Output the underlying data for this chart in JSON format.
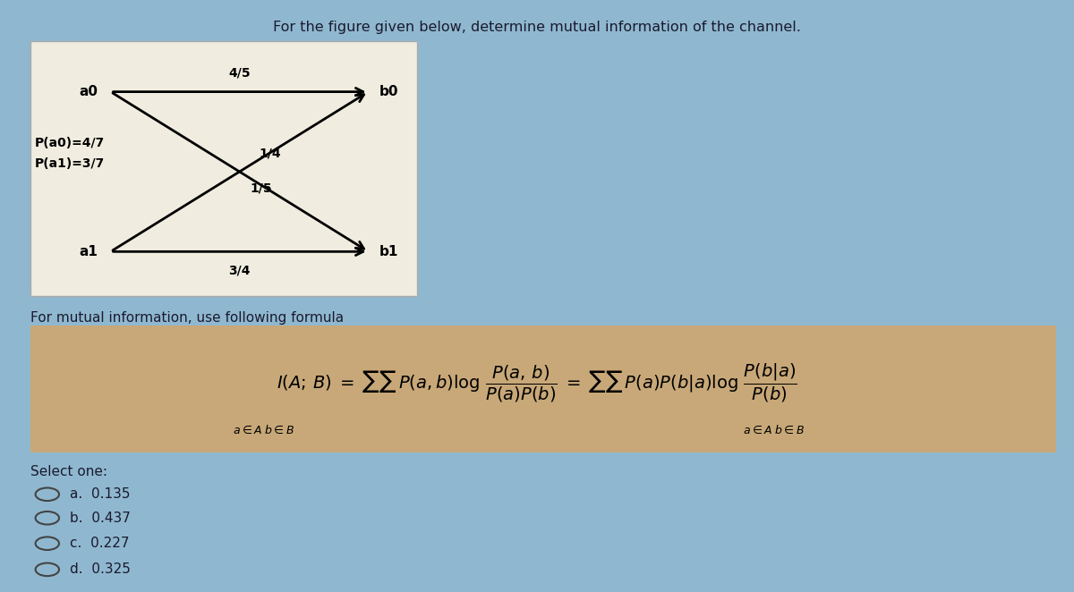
{
  "header_text": "For the figure given below, determine mutual information of the channel.",
  "bg_color_main": "#8fb8d0",
  "bg_color_diagram": "#f0ede0",
  "bg_color_formula": "#c8a878",
  "bg_color_options": "#8fb8d0",
  "prior_text_line1": "P(a0)=4/7",
  "prior_text_line2": "P(a1)=3/7",
  "formula_label": "For mutual information, use following formula",
  "select_text": "Select one:",
  "options": [
    "a.  0.135",
    "b.  0.437",
    "c.  0.227",
    "d.  0.325"
  ],
  "edge_labels": {
    "a0_b0": "4/5",
    "a0_b1": "1/5",
    "a1_b0": "1/4",
    "a1_b1": "3/4"
  },
  "dark_color": "#1a1a2e",
  "arrow_color": "#000000"
}
